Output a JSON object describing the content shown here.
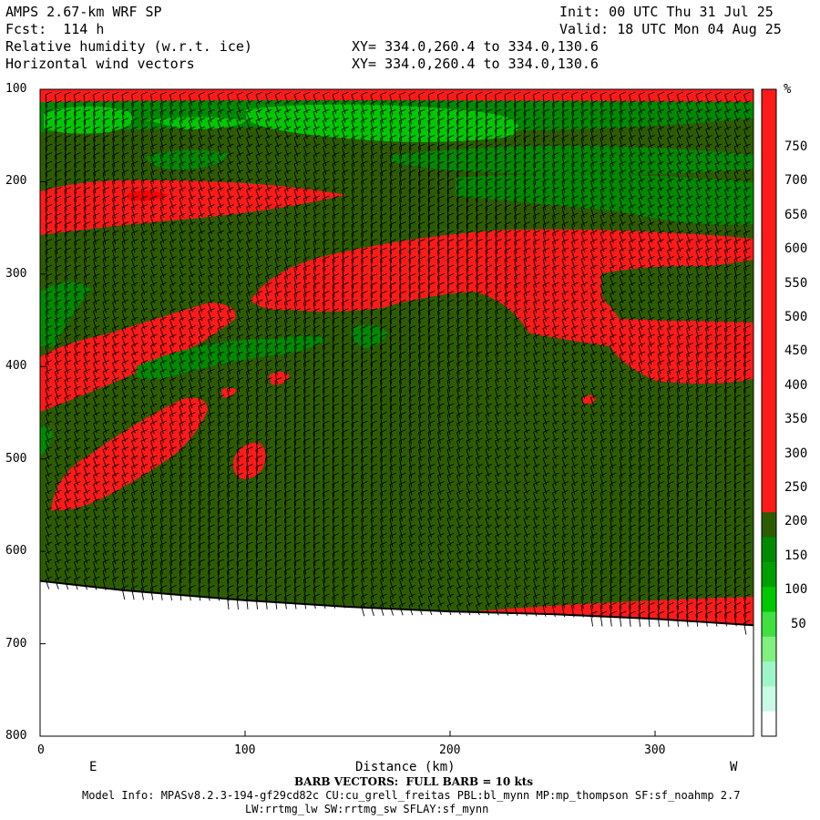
{
  "header": {
    "model": "AMPS 2.67-km WRF SP",
    "fcst": "Fcst:  114 h",
    "init": "Init: 00 UTC Thu 31 Jul 25",
    "valid": "Valid: 18 UTC Mon 04 Aug 25",
    "field1": "Relative humidity (w.r.t. ice)",
    "field2": "Horizontal wind vectors",
    "xy1": "XY= 334.0,260.4 to 334.0,130.6",
    "xy2": "XY= 334.0,260.4 to 334.0,130.6"
  },
  "footer": {
    "barb_note": "BARB VECTORS:  FULL BARB = 10 kts",
    "model_info": "Model Info: MPASv8.2.3-194-gf29cd82c CU:cu_grell_freitas PBL:bl_mynn MP:mp_thompson SF:sf_noahmp 2.7",
    "model_info2": "LW:rrtmg_lw SW:rrtmg_sw SFLAY:sf_mynn"
  },
  "chart_data": {
    "type": "heatmap",
    "title": "Relative humidity (w.r.t. ice)",
    "xlabel": "Distance (km)",
    "ylabel": "",
    "xlim": [
      0,
      348
    ],
    "ylim": [
      800,
      100
    ],
    "x_ticks": [
      0,
      100,
      200,
      300
    ],
    "y_ticks": [
      100,
      200,
      300,
      400,
      500,
      600,
      700,
      800
    ],
    "x_end_labels": {
      "left": "E",
      "right": "W"
    },
    "colorbar": {
      "unit": "%",
      "labels": [
        50,
        100,
        150,
        200,
        250,
        300,
        350,
        400,
        450,
        500,
        550,
        600,
        650,
        700,
        750
      ]
    },
    "terrain_hpa": [
      [
        0,
        632
      ],
      [
        40,
        642
      ],
      [
        100,
        653
      ],
      [
        150,
        660
      ],
      [
        200,
        665
      ],
      [
        250,
        668
      ],
      [
        300,
        673
      ],
      [
        348,
        680
      ]
    ],
    "colors": {
      "red": "#ff1a1a",
      "bright_red": "#ff0000",
      "dark_green": "#2d5c00",
      "green": "#008a00",
      "bright_green": "#00c800",
      "black": "#000000"
    }
  }
}
